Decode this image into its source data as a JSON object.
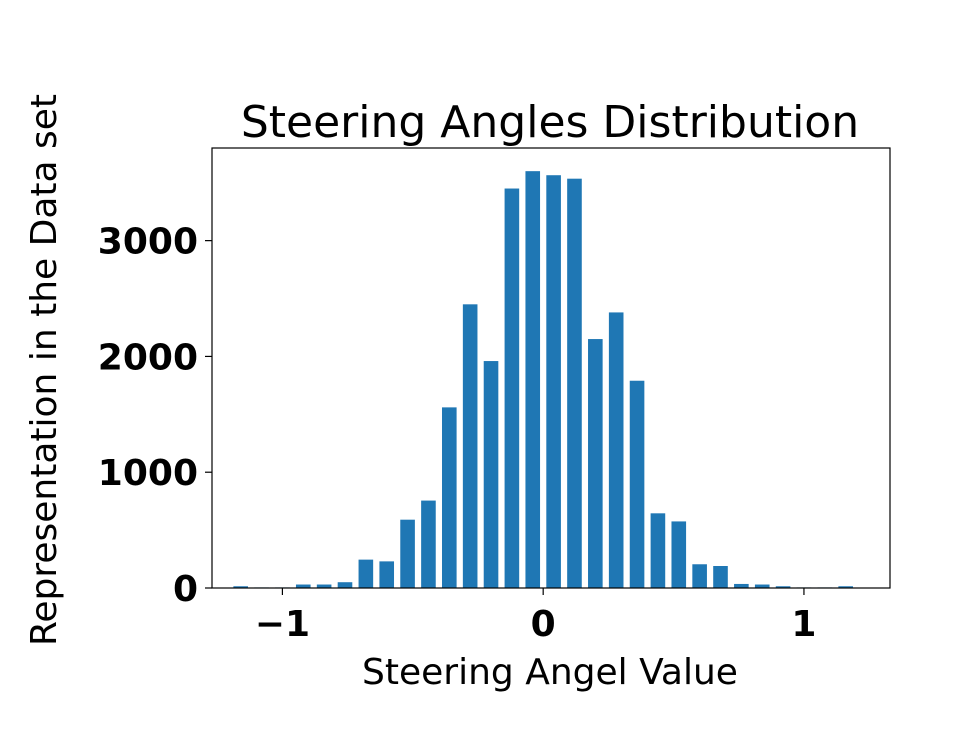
{
  "chart_data": {
    "type": "bar",
    "title": "Steering Angles Distribution",
    "xlabel": "Steering Angel Value",
    "ylabel": "Representation in the Data set",
    "xlim": [
      -1.27,
      1.33
    ],
    "ylim": [
      0,
      3800
    ],
    "xticks": [
      -1,
      0,
      1
    ],
    "xtick_labels": [
      "−1",
      "0",
      "1"
    ],
    "yticks": [
      0,
      1000,
      2000,
      3000
    ],
    "ytick_labels": [
      "0",
      "1000",
      "2000",
      "3000"
    ],
    "bar_width": 0.056,
    "color": "#1f77b4",
    "grid": false,
    "bars": [
      {
        "x": -1.16,
        "value": 15
      },
      {
        "x": -1.08,
        "value": 5
      },
      {
        "x": -1.0,
        "value": 5
      },
      {
        "x": -0.92,
        "value": 30
      },
      {
        "x": -0.84,
        "value": 30
      },
      {
        "x": -0.76,
        "value": 50
      },
      {
        "x": -0.68,
        "value": 245
      },
      {
        "x": -0.6,
        "value": 230
      },
      {
        "x": -0.52,
        "value": 590
      },
      {
        "x": -0.44,
        "value": 755
      },
      {
        "x": -0.36,
        "value": 1560
      },
      {
        "x": -0.28,
        "value": 2450
      },
      {
        "x": -0.2,
        "value": 1960
      },
      {
        "x": -0.12,
        "value": 3450
      },
      {
        "x": -0.04,
        "value": 3600
      },
      {
        "x": 0.04,
        "value": 3565
      },
      {
        "x": 0.12,
        "value": 3535
      },
      {
        "x": 0.2,
        "value": 2150
      },
      {
        "x": 0.28,
        "value": 2380
      },
      {
        "x": 0.36,
        "value": 1790
      },
      {
        "x": 0.44,
        "value": 645
      },
      {
        "x": 0.52,
        "value": 575
      },
      {
        "x": 0.6,
        "value": 205
      },
      {
        "x": 0.68,
        "value": 190
      },
      {
        "x": 0.76,
        "value": 35
      },
      {
        "x": 0.84,
        "value": 30
      },
      {
        "x": 0.92,
        "value": 15
      },
      {
        "x": 1.0,
        "value": 5
      },
      {
        "x": 1.08,
        "value": 5
      },
      {
        "x": 1.16,
        "value": 15
      }
    ]
  }
}
